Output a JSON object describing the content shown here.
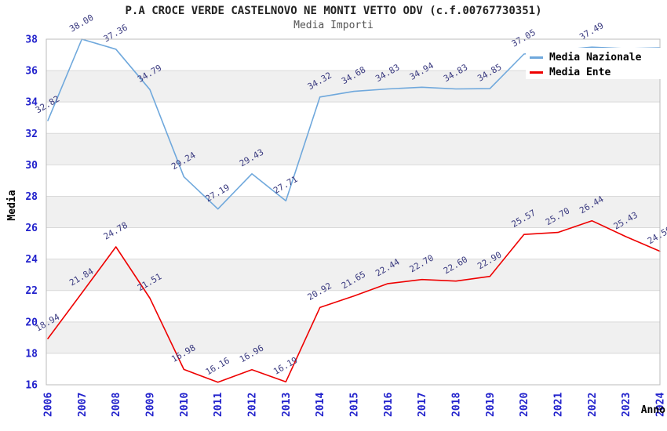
{
  "title": "P.A CROCE VERDE CASTELNOVO NE MONTI VETTO ODV (c.f.00767730351)",
  "subtitle": "Media Importi",
  "colors": {
    "tick_label": "#2222cc",
    "data_label": "#3b3b80",
    "grid_line": "#d9d9d9",
    "plot_border": "#bbbbbb",
    "band_gray": "#f0f0f0",
    "band_white": "#ffffff",
    "nazionale_line": "#6fa8dc",
    "ente_line": "#ee0000"
  },
  "chart_data": {
    "type": "line",
    "title": "P.A CROCE VERDE CASTELNOVO NE MONTI VETTO ODV (c.f.00767730351)",
    "subtitle": "Media Importi",
    "xlabel": "Anno",
    "ylabel": "Media",
    "ylim": [
      16,
      38
    ],
    "ytick_step": 2,
    "grid": "horizontal-bands",
    "legend_position": "top-right",
    "categories": [
      "2006",
      "2007",
      "2008",
      "2009",
      "2010",
      "2011",
      "2012",
      "2013",
      "2014",
      "2015",
      "2016",
      "2017",
      "2018",
      "2019",
      "2020",
      "2021",
      "2022",
      "2023",
      "2024"
    ],
    "series": [
      {
        "name": "Media Nazionale",
        "color": "#6fa8dc",
        "values": [
          32.82,
          38.0,
          37.36,
          34.79,
          29.24,
          27.19,
          29.43,
          27.71,
          34.32,
          34.68,
          34.83,
          34.94,
          34.83,
          34.85,
          37.05,
          37.3,
          37.49,
          37.4,
          37.45
        ],
        "labels": [
          "32.82",
          "38.00",
          "37.36",
          "34.79",
          "29.24",
          "27.19",
          "29.43",
          "27.71",
          "34.32",
          "34.68",
          "34.83",
          "34.94",
          "34.83",
          "34.85",
          "37.05",
          "",
          "37.49",
          "",
          ""
        ]
      },
      {
        "name": "Media Ente",
        "color": "#ee0000",
        "values": [
          18.94,
          21.84,
          24.78,
          21.51,
          16.98,
          16.16,
          16.96,
          16.19,
          20.92,
          21.65,
          22.44,
          22.7,
          22.6,
          22.9,
          25.57,
          25.7,
          26.44,
          25.43,
          24.5
        ],
        "labels": [
          "18.94",
          "21.84",
          "24.78",
          "21.51",
          "16.98",
          "16.16",
          "16.96",
          "16.19",
          "20.92",
          "21.65",
          "22.44",
          "22.70",
          "22.60",
          "22.90",
          "25.57",
          "25.70",
          "26.44",
          "25.43",
          "24.50"
        ]
      }
    ]
  }
}
